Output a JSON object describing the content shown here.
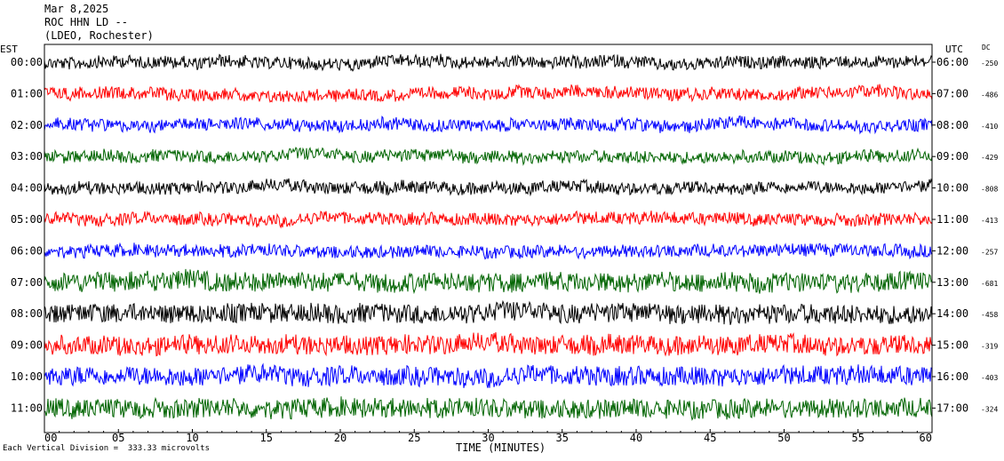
{
  "header": {
    "date": "Mar 8,2025",
    "station": "ROC HHN LD --",
    "location": "(LDEO, Rochester)"
  },
  "footer": {
    "scale_note": "Each Vertical Division =  333.33 microvolts"
  },
  "chart_data": {
    "type": "line",
    "title": "",
    "xlabel": "TIME (MINUTES)",
    "xlim": [
      0,
      60
    ],
    "x_ticks": [
      "00",
      "05",
      "10",
      "15",
      "20",
      "25",
      "30",
      "35",
      "40",
      "45",
      "50",
      "55",
      "60"
    ],
    "left_axis_label": "EST",
    "right_axis_label": "UTC",
    "dc_label": "DC",
    "rows": [
      {
        "est": "00:00",
        "utc": "06:00",
        "dc": "-250",
        "color": "#000000"
      },
      {
        "est": "01:00",
        "utc": "07:00",
        "dc": "-486",
        "color": "#ff0000"
      },
      {
        "est": "02:00",
        "utc": "08:00",
        "dc": "-410",
        "color": "#0000ff"
      },
      {
        "est": "03:00",
        "utc": "09:00",
        "dc": "-429",
        "color": "#006400"
      },
      {
        "est": "04:00",
        "utc": "10:00",
        "dc": "-808",
        "color": "#000000"
      },
      {
        "est": "05:00",
        "utc": "11:00",
        "dc": "-413",
        "color": "#ff0000"
      },
      {
        "est": "06:00",
        "utc": "12:00",
        "dc": "-257",
        "color": "#0000ff"
      },
      {
        "est": "07:00",
        "utc": "13:00",
        "dc": "-681",
        "color": "#006400"
      },
      {
        "est": "08:00",
        "utc": "14:00",
        "dc": "-458",
        "color": "#000000"
      },
      {
        "est": "09:00",
        "utc": "15:00",
        "dc": "-319",
        "color": "#ff0000"
      },
      {
        "est": "10:00",
        "utc": "16:00",
        "dc": "-403",
        "color": "#0000ff"
      },
      {
        "est": "11:00",
        "utc": "17:00",
        "dc": "-324",
        "color": "#006400"
      }
    ]
  }
}
